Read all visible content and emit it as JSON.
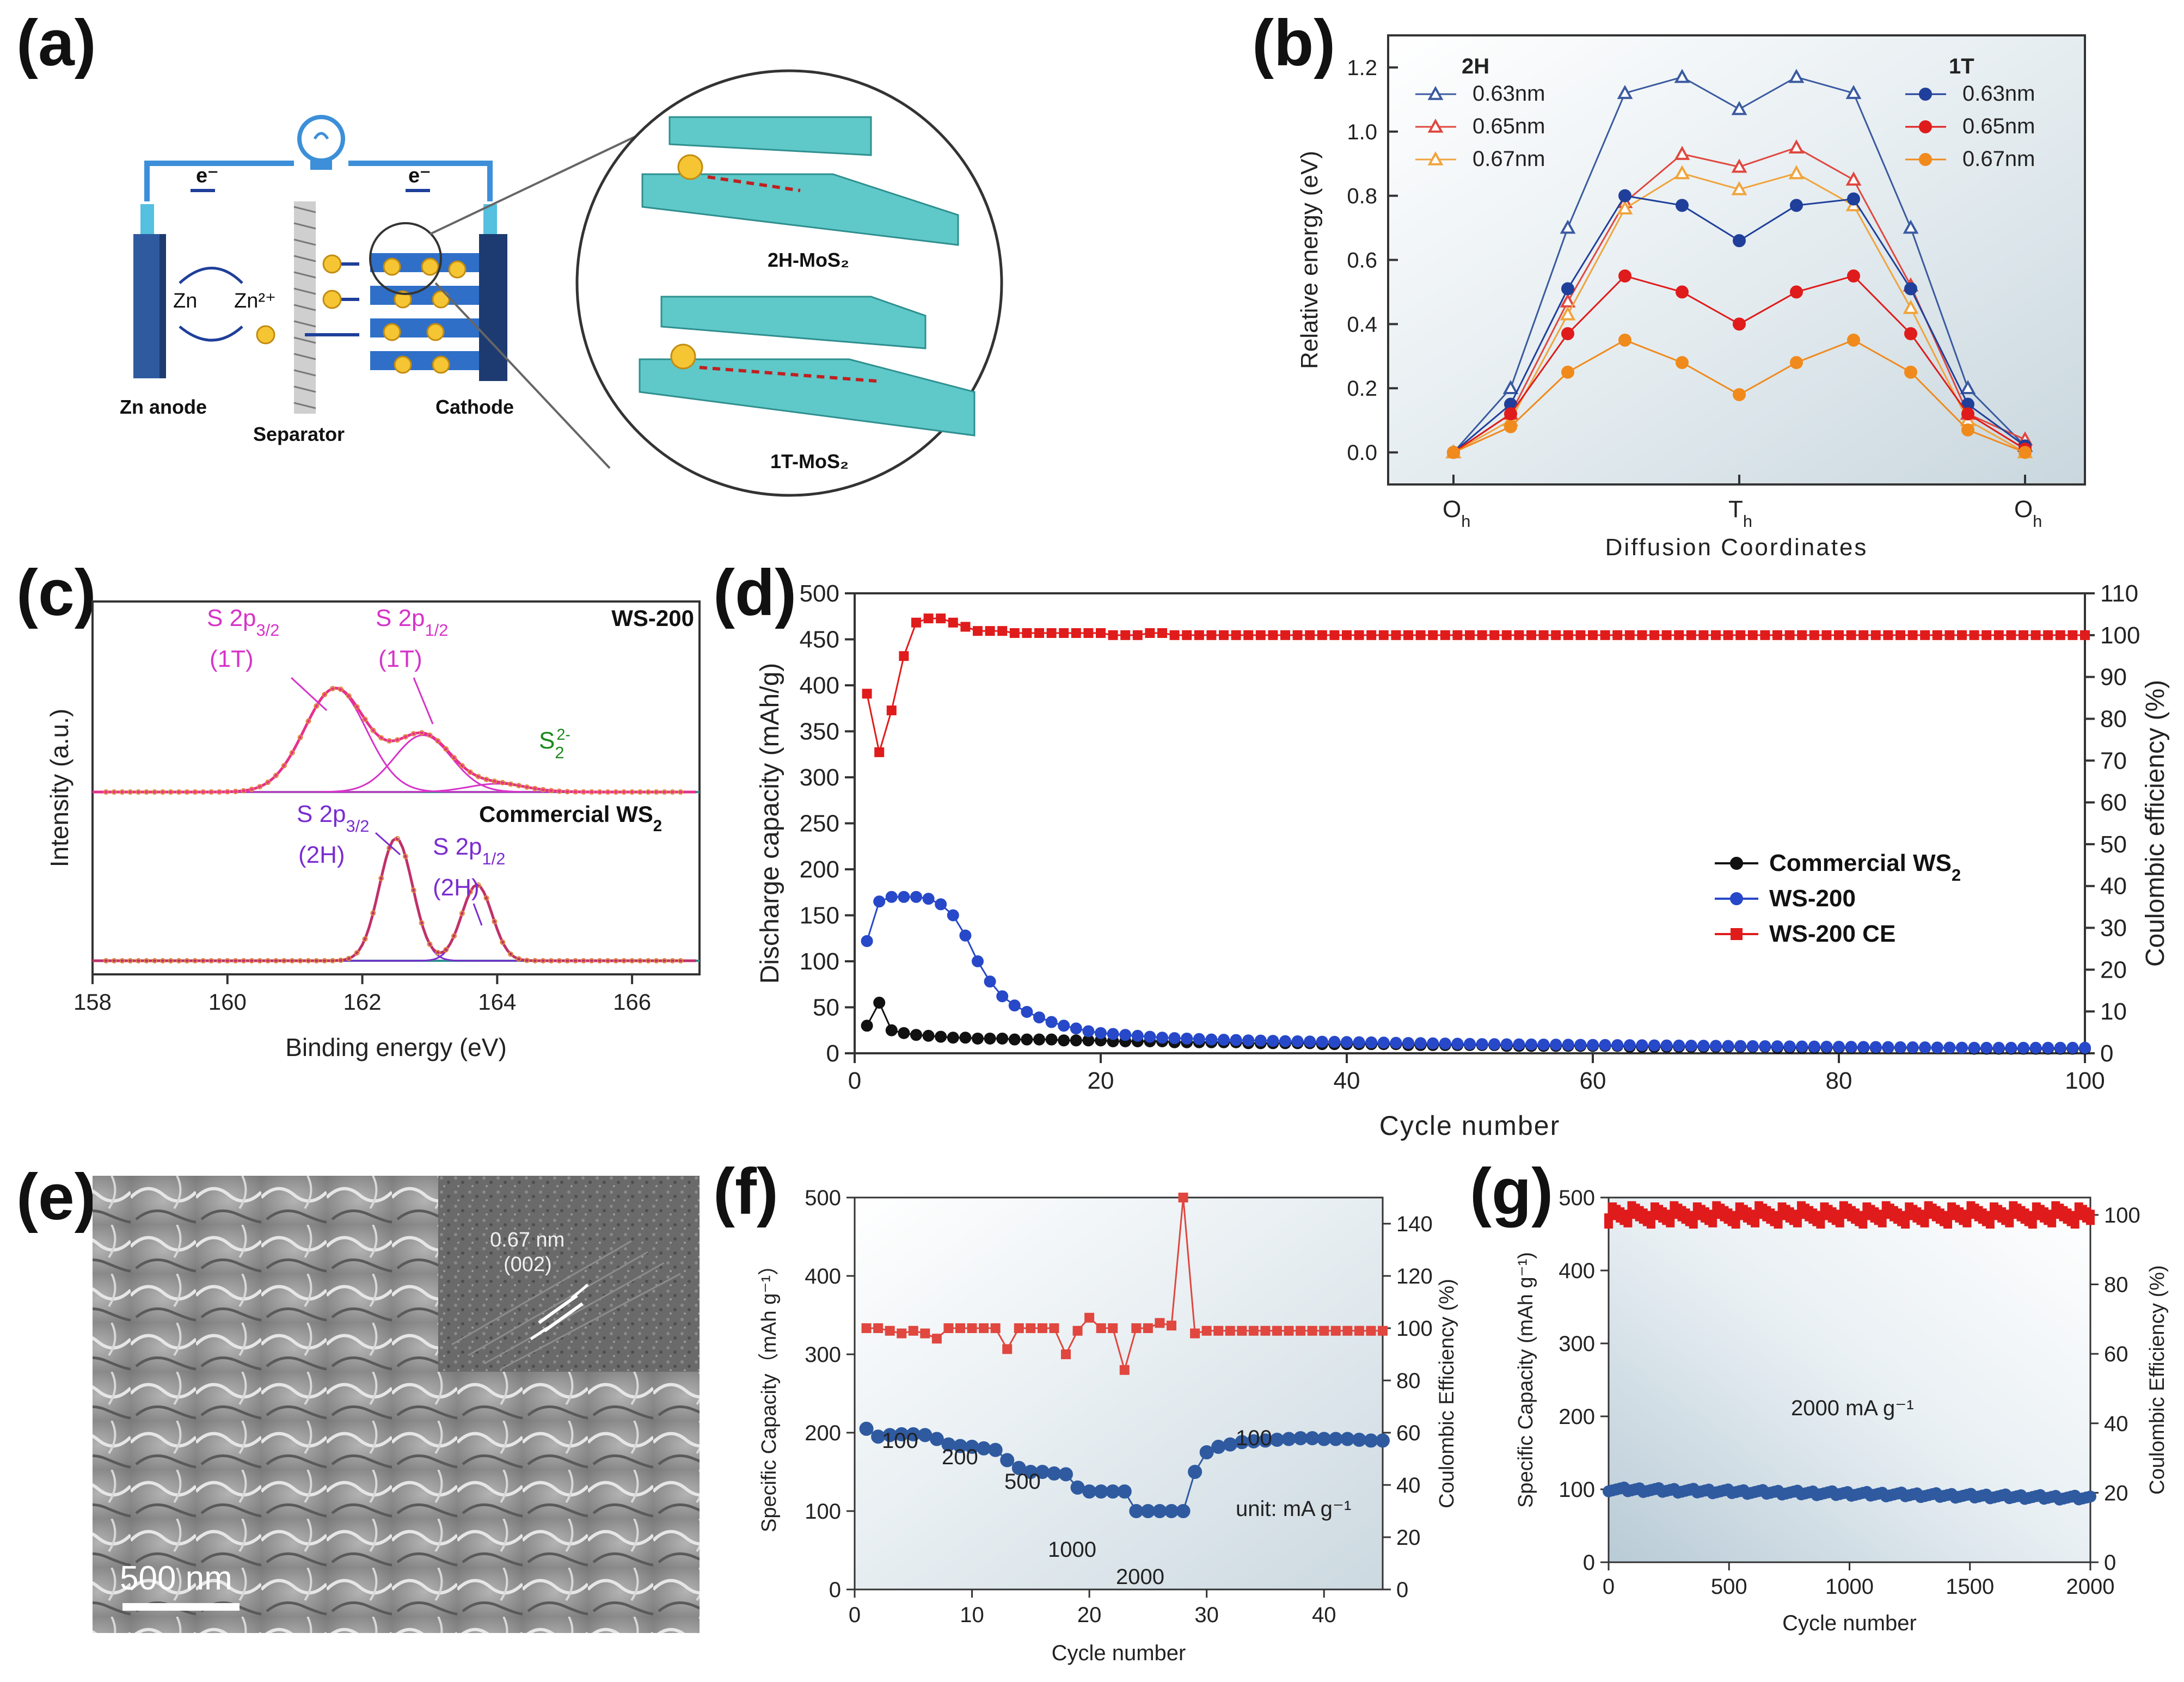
{
  "colors": {
    "blue_dark": "#1f3f9a",
    "blue": "#2748c8",
    "red": "#e01b1b",
    "red_light": "#e8605a",
    "orange": "#f0a43c",
    "black": "#111111",
    "magenta": "#d633c8",
    "purple": "#7a2cd0",
    "green": "#1a8a1a",
    "teal": "#5fc8c8",
    "fg_blue": "#3c6fb0"
  },
  "panel_a": {
    "label": "(a)",
    "texts": {
      "e1": "e⁻",
      "e2": "e⁻",
      "zn": "Zn",
      "zn2": "Zn²⁺",
      "anode": "Zn anode",
      "separator": "Separator",
      "cathode": "Cathode",
      "mos2_2h": "2H-MoS₂",
      "mos2_1t": "1T-MoS₂",
      "ion": "Zn²⁺"
    }
  },
  "panel_e": {
    "label": "(e)",
    "inset_label_1": "0.67 nm",
    "inset_label_2": "(002)",
    "scale_bar": "500 nm"
  },
  "chart_data": [
    {
      "id": "b",
      "label": "(b)",
      "type": "line",
      "title": "",
      "xlabel": "Diffusion Coordinates",
      "ylabel": "Relative energy (eV)",
      "ylim": [
        -0.1,
        1.3
      ],
      "yticks": [
        0.0,
        0.2,
        0.4,
        0.6,
        0.8,
        1.0,
        1.2
      ],
      "x": [
        0,
        1,
        2,
        3,
        4,
        5,
        6,
        7,
        8,
        9,
        10
      ],
      "xticks": [
        {
          "pos": 0,
          "main": "O",
          "sub": "h"
        },
        {
          "pos": 5,
          "main": "T",
          "sub": "h"
        },
        {
          "pos": 10,
          "main": "O",
          "sub": "h"
        }
      ],
      "legend_groups": [
        "2H",
        "1T"
      ],
      "series": [
        {
          "name": "0.63nm",
          "group": "2H",
          "marker": "triangle-open",
          "color": "#3a5aa0",
          "values": [
            0,
            0.2,
            0.7,
            1.12,
            1.17,
            1.07,
            1.17,
            1.12,
            0.7,
            0.2,
            0.02
          ]
        },
        {
          "name": "0.65nm",
          "group": "2H",
          "marker": "triangle-open",
          "color": "#e0473f",
          "values": [
            0,
            0.12,
            0.47,
            0.78,
            0.93,
            0.89,
            0.95,
            0.85,
            0.52,
            0.12,
            0.04
          ]
        },
        {
          "name": "0.67nm",
          "group": "2H",
          "marker": "triangle-open",
          "color": "#f0a43c",
          "values": [
            0,
            0.1,
            0.43,
            0.76,
            0.87,
            0.82,
            0.87,
            0.77,
            0.45,
            0.1,
            0.0
          ]
        },
        {
          "name": "0.63nm",
          "group": "1T",
          "marker": "circle",
          "color": "#1f3f9a",
          "values": [
            0,
            0.15,
            0.51,
            0.8,
            0.77,
            0.66,
            0.77,
            0.79,
            0.51,
            0.15,
            0.02
          ]
        },
        {
          "name": "0.65nm",
          "group": "1T",
          "marker": "circle",
          "color": "#e01b1b",
          "values": [
            0,
            0.12,
            0.37,
            0.55,
            0.5,
            0.4,
            0.5,
            0.55,
            0.37,
            0.12,
            0.01
          ]
        },
        {
          "name": "0.67nm",
          "group": "1T",
          "marker": "circle",
          "color": "#f08a1c",
          "values": [
            0,
            0.08,
            0.25,
            0.35,
            0.28,
            0.18,
            0.28,
            0.35,
            0.25,
            0.07,
            0.0
          ]
        }
      ]
    },
    {
      "id": "c",
      "label": "(c)",
      "type": "line",
      "xlabel": "Binding energy (eV)",
      "ylabel": "Intensity (a.u.)",
      "xlim": [
        158,
        167
      ],
      "xticks": [
        158,
        160,
        162,
        164,
        166
      ],
      "samples": [
        {
          "name": "WS-200",
          "peaks": [
            {
              "center": 161.6,
              "height": 1.0,
              "width": 0.65
            },
            {
              "center": 162.9,
              "height": 0.55,
              "width": 0.6
            },
            {
              "center": 164.0,
              "height": 0.08,
              "width": 0.6
            }
          ]
        },
        {
          "name": "Commercial WS₂",
          "peaks": [
            {
              "center": 162.5,
              "height": 1.0,
              "width": 0.35
            },
            {
              "center": 163.7,
              "height": 0.62,
              "width": 0.32
            }
          ]
        }
      ],
      "annotations": {
        "s1_main": "S 2p",
        "s1_sub": "3/2",
        "s1_phase": "(1T)",
        "s2_main": "S 2p",
        "s2_sub": "1/2",
        "s2_phase": "(1T)",
        "s22_main": "S",
        "s22_sub": "2",
        "s22_sup": "2-",
        "c1_main": "S 2p",
        "c1_sub": "3/2",
        "c1_phase": "(2H)",
        "c2_main": "S 2p",
        "c2_sub": "1/2",
        "c2_phase": "(2H)",
        "ws200": "WS-200",
        "commercial_main": "Commercial WS",
        "commercial_sub": "2"
      }
    },
    {
      "id": "d",
      "label": "(d)",
      "type": "scatter",
      "xlabel": "Cycle number",
      "ylabel": "Discharge capacity (mAh/g)",
      "y2label": "Coulombic efficiency (%)",
      "xlim": [
        0,
        100
      ],
      "ylim": [
        0,
        500
      ],
      "y2lim": [
        0,
        110
      ],
      "xticks": [
        0,
        20,
        40,
        60,
        80,
        100
      ],
      "yticks": [
        0,
        50,
        100,
        150,
        200,
        250,
        300,
        350,
        400,
        450,
        500
      ],
      "y2ticks": [
        0,
        10,
        20,
        30,
        40,
        50,
        60,
        70,
        80,
        90,
        100,
        110
      ],
      "series": [
        {
          "name": "Commercial WS₂",
          "color": "#111111",
          "marker": "circle",
          "values": [
            30,
            55,
            25,
            22,
            20,
            19,
            18,
            17,
            17,
            16,
            16,
            16,
            15,
            15,
            15,
            15,
            14,
            14,
            14,
            14,
            13,
            13,
            13,
            13,
            13,
            12,
            12,
            12,
            12,
            12,
            12,
            11,
            11,
            11,
            11,
            11,
            11,
            10,
            10,
            10,
            10,
            10,
            10,
            10,
            9,
            9,
            9,
            9,
            9,
            9,
            9,
            9,
            8,
            8,
            8,
            8,
            8,
            8,
            8,
            8,
            8,
            8,
            7,
            7,
            7,
            7,
            7,
            7,
            7,
            7,
            7,
            7,
            7,
            7,
            6,
            6,
            6,
            6,
            6,
            6,
            6,
            6,
            6,
            6,
            6,
            6,
            6,
            6,
            6,
            6,
            5,
            5,
            5,
            5,
            5,
            5,
            5,
            5,
            5,
            5
          ]
        },
        {
          "name": "WS-200",
          "color": "#2748c8",
          "marker": "circle",
          "values": [
            122,
            165,
            170,
            170,
            170,
            168,
            162,
            150,
            128,
            100,
            78,
            62,
            52,
            45,
            39,
            34,
            30,
            27,
            24,
            22,
            21,
            20,
            19,
            18,
            17,
            16.5,
            16,
            15.5,
            15,
            14.7,
            14.4,
            14,
            13.8,
            13.5,
            13.2,
            13,
            12.8,
            12.6,
            12.4,
            12.2,
            12,
            11.8,
            11.6,
            11.4,
            11.2,
            11,
            10.8,
            10.6,
            10.4,
            10.2,
            10,
            9.9,
            9.8,
            9.7,
            9.6,
            9.5,
            9.4,
            9.3,
            9.2,
            9.1,
            9,
            8.9,
            8.8,
            8.7,
            8.6,
            8.5,
            8.4,
            8.3,
            8.2,
            8.1,
            8,
            7.9,
            7.8,
            7.7,
            7.6,
            7.5,
            7.4,
            7.3,
            7.2,
            7.1,
            7,
            6.9,
            6.8,
            6.7,
            6.6,
            6.5,
            6.4,
            6.3,
            6.2,
            6.1,
            6,
            6,
            6,
            6,
            6,
            6,
            6,
            6,
            6,
            6
          ]
        },
        {
          "name": "WS-200 CE",
          "color": "#e01b1b",
          "marker": "square",
          "axis": "y2",
          "values": [
            86,
            72,
            82,
            95,
            103,
            104,
            104,
            103,
            102,
            101,
            101,
            101,
            100.5,
            100.5,
            100.5,
            100.5,
            100.5,
            100.5,
            100.5,
            100.5,
            100,
            100,
            100,
            100.5,
            100.5,
            100,
            100,
            100,
            100,
            100,
            100,
            100,
            100,
            100,
            100,
            100,
            100,
            100,
            100,
            100,
            100,
            100,
            100,
            100,
            100,
            100,
            100,
            100,
            100,
            100,
            100,
            100,
            100,
            100,
            100,
            100,
            100,
            100,
            100,
            100,
            100,
            100,
            100,
            100,
            100,
            100,
            100,
            100,
            100,
            100,
            100,
            100,
            100,
            100,
            100,
            100,
            100,
            100,
            100,
            100,
            100,
            100,
            100,
            100,
            100,
            100,
            100,
            100,
            100,
            100,
            100,
            100,
            100,
            100,
            100,
            100,
            100,
            100,
            100,
            100
          ]
        }
      ],
      "legend": [
        "Commercial WS",
        "WS-200",
        "WS-200 CE"
      ],
      "legend_sub": "2"
    },
    {
      "id": "f",
      "label": "(f)",
      "type": "scatter",
      "xlabel": "Cycle number",
      "ylabel": "Specific Capacity（mAh g⁻¹）",
      "y2label": "Coulombic Efficiency (%)",
      "xlim": [
        0,
        45
      ],
      "ylim": [
        0,
        500
      ],
      "y2lim": [
        0,
        150
      ],
      "xticks": [
        0,
        10,
        20,
        30,
        40
      ],
      "yticks": [
        0,
        100,
        200,
        300,
        400,
        500
      ],
      "y2ticks": [
        0,
        20,
        40,
        60,
        80,
        100,
        120,
        140
      ],
      "series": [
        {
          "name": "capacity",
          "color": "#2f5aa0",
          "marker": "circle",
          "values": [
            205,
            195,
            197,
            198,
            198,
            197,
            192,
            185,
            183,
            182,
            180,
            178,
            165,
            155,
            150,
            150,
            148,
            147,
            130,
            125,
            125,
            125,
            125,
            100,
            100,
            100,
            100,
            100,
            150,
            175,
            182,
            185,
            188,
            189,
            190,
            191,
            192,
            193,
            193,
            192,
            192,
            192,
            191,
            190,
            190
          ]
        },
        {
          "name": "CE",
          "color": "#e0473f",
          "marker": "square",
          "axis": "y2",
          "values": [
            100,
            100,
            99,
            98,
            99,
            98,
            96,
            100,
            100,
            100,
            100,
            100,
            92,
            100,
            100,
            100,
            100,
            90,
            99,
            104,
            100,
            100,
            84,
            100,
            100,
            102,
            101,
            150,
            98,
            99,
            99,
            99,
            99,
            99,
            99,
            99,
            99,
            99,
            99,
            99,
            99,
            99,
            99,
            99,
            99
          ]
        }
      ],
      "rate_labels": [
        "100",
        "200",
        "500",
        "1000",
        "2000",
        "100"
      ],
      "unit_label": "unit: mA g⁻¹"
    },
    {
      "id": "g",
      "label": "(g)",
      "type": "scatter",
      "xlabel": "Cycle number",
      "ylabel": "Specific Capacity (mAh g⁻¹)",
      "y2label": "Coulombic Efficiency (%)",
      "xlim": [
        0,
        2000
      ],
      "ylim": [
        0,
        500
      ],
      "y2lim": [
        0,
        105
      ],
      "xticks": [
        0,
        500,
        1000,
        1500,
        2000
      ],
      "yticks": [
        0,
        100,
        200,
        300,
        400,
        500
      ],
      "y2ticks": [
        0,
        20,
        40,
        60,
        80,
        100
      ],
      "annotation": "2000 mA g⁻¹",
      "series": [
        {
          "name": "capacity",
          "color": "#2f5aa0",
          "start": 100,
          "end": 88
        },
        {
          "name": "CE",
          "color": "#e01b1b",
          "axis": "y2",
          "level": 100
        }
      ]
    }
  ]
}
